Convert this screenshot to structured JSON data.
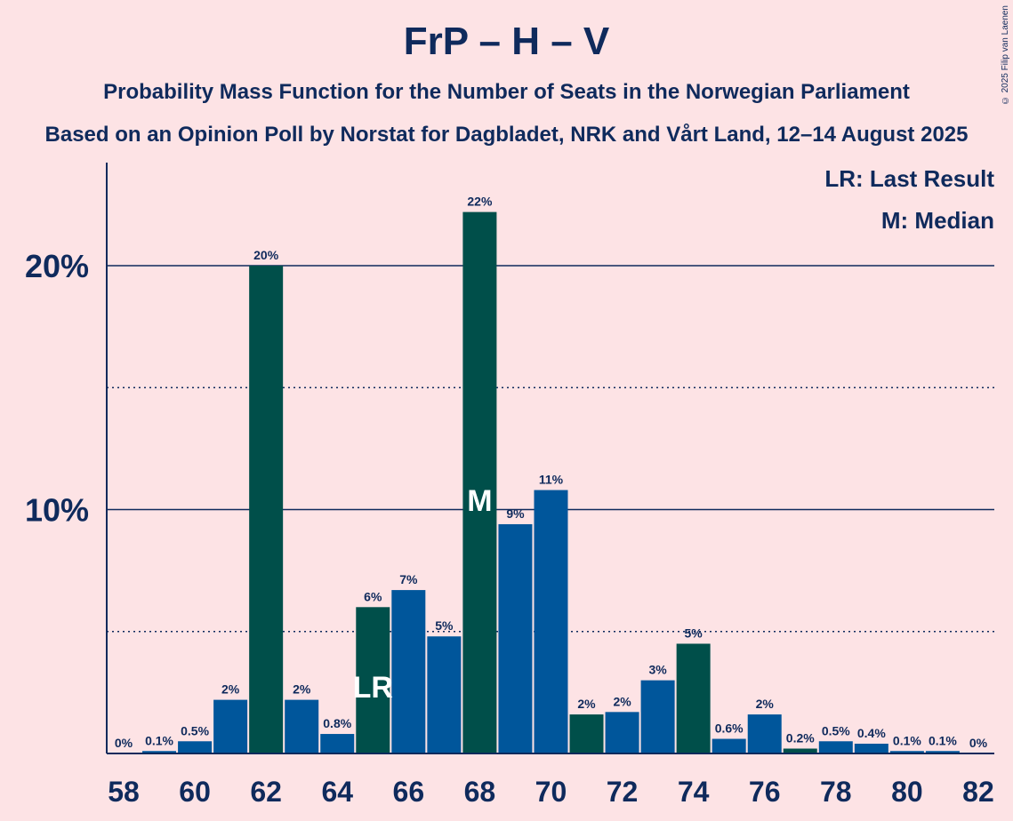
{
  "title": "FrP – H – V",
  "subtitle1": "Probability Mass Function for the Number of Seats in the Norwegian Parliament",
  "subtitle2": "Based on an Opinion Poll by Norstat for Dagbladet, NRK and Vårt Land, 12–14 August 2025",
  "copyright": "© 2025 Filip van Laenen",
  "legend": {
    "last_result": "LR: Last Result",
    "median": "M: Median"
  },
  "colors": {
    "background": "#FDE3E5",
    "dark_green": "#004F4A",
    "blue": "#00569B",
    "text": "#0F2A5C"
  },
  "chart_data": {
    "type": "bar",
    "title": "FrP – H – V",
    "categories": [
      58,
      59,
      60,
      61,
      62,
      63,
      64,
      65,
      66,
      67,
      68,
      69,
      70,
      71,
      72,
      73,
      74,
      75,
      76,
      77,
      78,
      79,
      80,
      81,
      82
    ],
    "values": [
      0,
      0.1,
      0.5,
      2.2,
      20.0,
      2.2,
      0.8,
      6.0,
      6.7,
      4.8,
      22.2,
      9.4,
      10.8,
      1.6,
      1.7,
      3.0,
      4.5,
      0.6,
      1.6,
      0.2,
      0.5,
      0.4,
      0.1,
      0.1,
      0
    ],
    "data_labels": [
      "0%",
      "0.1%",
      "0.5%",
      "2%",
      "20%",
      "2%",
      "0.8%",
      "6%",
      "7%",
      "5%",
      "22%",
      "9%",
      "11%",
      "2%",
      "2%",
      "3%",
      "5%",
      "0.6%",
      "2%",
      "0.2%",
      "0.5%",
      "0.4%",
      "0.1%",
      "0.1%",
      "0%"
    ],
    "bar_colors": [
      "blue",
      "blue",
      "blue",
      "blue",
      "dark_green",
      "blue",
      "blue",
      "dark_green",
      "blue",
      "blue",
      "dark_green",
      "blue",
      "blue",
      "dark_green",
      "blue",
      "blue",
      "dark_green",
      "blue",
      "blue",
      "dark_green",
      "blue",
      "blue",
      "blue",
      "blue",
      "blue"
    ],
    "x_tick_labels": [
      "58",
      "60",
      "62",
      "64",
      "66",
      "68",
      "70",
      "72",
      "74",
      "76",
      "78",
      "80",
      "82"
    ],
    "y_tick_labels": [
      "10%",
      "20%"
    ],
    "ylim": [
      0,
      24
    ],
    "major_gridlines": [
      10,
      20
    ],
    "minor_gridlines": [
      5,
      15
    ],
    "annotations": [
      {
        "seats": 65,
        "text": "LR"
      },
      {
        "seats": 68,
        "text": "M"
      }
    ],
    "legend_position": "top-right"
  }
}
